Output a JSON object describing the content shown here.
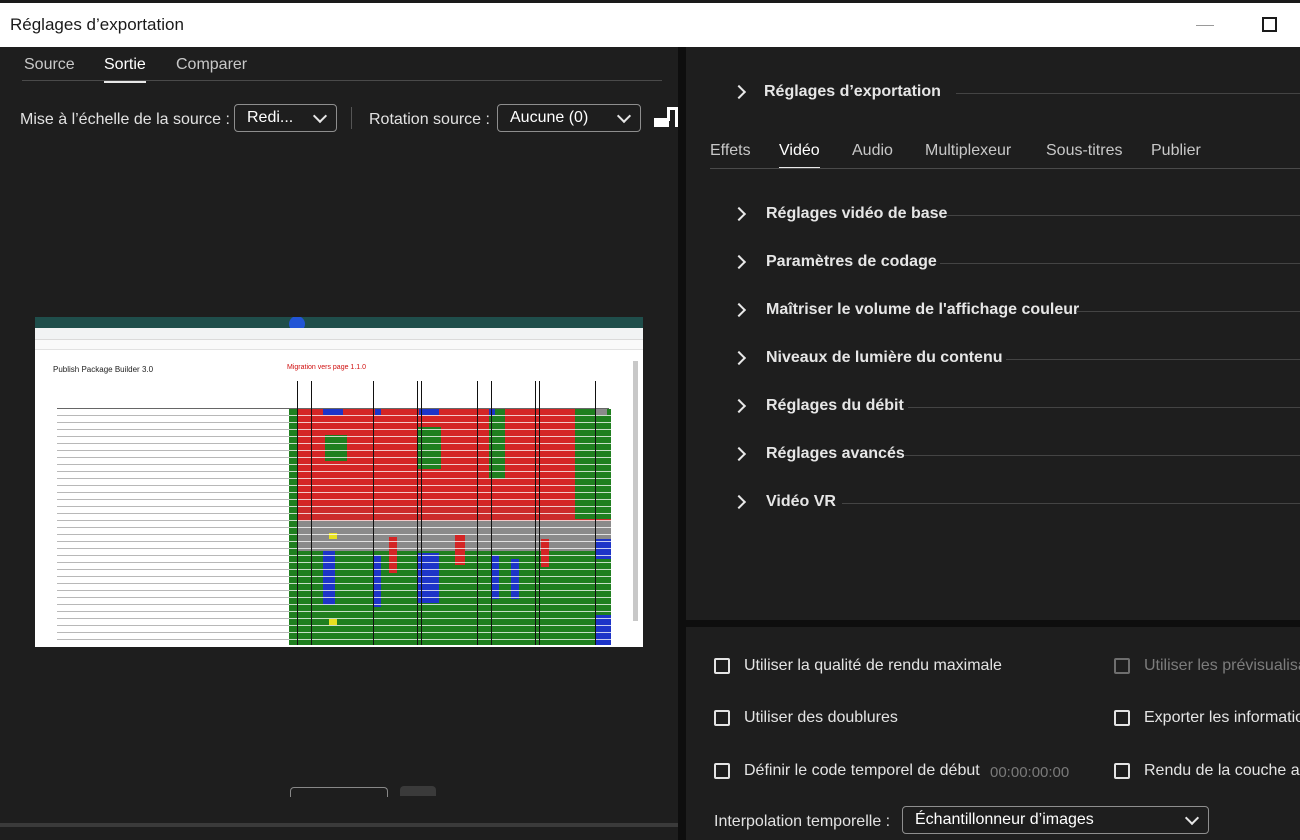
{
  "window": {
    "title": "Réglages d’exportation"
  },
  "left": {
    "tabs": [
      {
        "label": "Source"
      },
      {
        "label": "Sortie"
      },
      {
        "label": "Comparer"
      }
    ],
    "scale_label": "Mise à l’échelle de la source :",
    "scale_value": "Redi...",
    "rotation_label": "Rotation source :",
    "rotation_value": "Aucune (0)",
    "preview": {
      "page_title": "Publish Package Builder 3.0",
      "red_note": "Migration vers page 1.1.0"
    }
  },
  "right": {
    "top_section": "Réglages d’exportation",
    "tabs": [
      {
        "label": "Effets"
      },
      {
        "label": "Vidéo"
      },
      {
        "label": "Audio"
      },
      {
        "label": "Multiplexeur"
      },
      {
        "label": "Sous-titres"
      },
      {
        "label": "Publier"
      }
    ],
    "sections": [
      {
        "label": "Réglages vidéo de base"
      },
      {
        "label": "Paramètres de codage"
      },
      {
        "label": "Maîtriser le volume de l'affichage couleur"
      },
      {
        "label": "Niveaux de lumière du contenu"
      },
      {
        "label": "Réglages du débit"
      },
      {
        "label": "Réglages avancés"
      },
      {
        "label": "Vidéo VR"
      }
    ]
  },
  "options": {
    "max_quality": "Utiliser la qualité de rendu maximale",
    "use_previews": "Utiliser les prévisualisa",
    "use_proxies": "Utiliser des doublures",
    "export_info": "Exporter les informatio",
    "set_start_tc": "Définir le code temporel de début",
    "start_tc_value": "00:00:00:00",
    "render_alpha": "Rendu de la couche al",
    "interpolation_label": "Interpolation temporelle :",
    "interpolation_value": "Échantillonneur d’images"
  }
}
